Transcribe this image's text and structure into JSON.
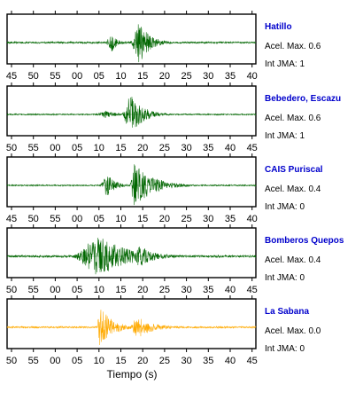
{
  "chart_data": {
    "type": "line",
    "xlabel": "Tiempo (s)",
    "panels": [
      {
        "station": "Hatillo",
        "accel_label": "Acel. Max. 0.6",
        "jma_label": "Int JMA: 1",
        "color": "#006600",
        "ticks": [
          "45",
          "50",
          "55",
          "00",
          "05",
          "10",
          "15",
          "20",
          "25",
          "30",
          "35",
          "40"
        ],
        "waveform": {
          "noise": 0.04,
          "bursts": [
            {
              "start": 0.39,
              "peak": 0.42,
              "end": 0.52,
              "amp": 0.45
            },
            {
              "start": 0.49,
              "peak": 0.53,
              "end": 0.72,
              "amp": 1.0
            }
          ]
        }
      },
      {
        "station": "Bebedero, Escazu",
        "accel_label": "Acel. Max. 0.6",
        "jma_label": "Int JMA: 1",
        "color": "#006600",
        "ticks": [
          "50",
          "55",
          "00",
          "05",
          "10",
          "15",
          "20",
          "25",
          "30",
          "35",
          "40",
          "45"
        ],
        "waveform": {
          "noise": 0.03,
          "bursts": [
            {
              "start": 0.35,
              "peak": 0.4,
              "end": 0.55,
              "amp": 0.22
            },
            {
              "start": 0.46,
              "peak": 0.49,
              "end": 0.72,
              "amp": 1.0
            }
          ]
        }
      },
      {
        "station": "CAIS Puriscal",
        "accel_label": "Acel. Max. 0.4",
        "jma_label": "Int JMA: 0",
        "color": "#006600",
        "ticks": [
          "45",
          "50",
          "55",
          "00",
          "05",
          "10",
          "15",
          "20",
          "25",
          "30",
          "35",
          "40"
        ],
        "waveform": {
          "noise": 0.03,
          "bursts": [
            {
              "start": 0.37,
              "peak": 0.4,
              "end": 0.55,
              "amp": 0.55
            },
            {
              "start": 0.49,
              "peak": 0.51,
              "end": 0.85,
              "amp": 1.0
            }
          ]
        }
      },
      {
        "station": "Bomberos Quepos",
        "accel_label": "Acel. Max. 0.4",
        "jma_label": "Int JMA: 0",
        "color": "#006600",
        "ticks": [
          "50",
          "55",
          "00",
          "05",
          "10",
          "15",
          "20",
          "25",
          "30",
          "35",
          "40",
          "45"
        ],
        "waveform": {
          "noise": 0.05,
          "bursts": [
            {
              "start": 0.25,
              "peak": 0.36,
              "end": 0.9,
              "amp": 1.0
            },
            {
              "start": 0.5,
              "peak": 0.53,
              "end": 0.8,
              "amp": 0.5
            }
          ]
        }
      },
      {
        "station": "La Sabana",
        "accel_label": "Acel. Max. 0.0",
        "jma_label": "Int JMA: 0",
        "color": "#ffaa00",
        "ticks": [
          "50",
          "55",
          "00",
          "05",
          "10",
          "15",
          "20",
          "25",
          "30",
          "35",
          "40",
          "45"
        ],
        "waveform": {
          "noise": 0.04,
          "bursts": [
            {
              "start": 0.36,
              "peak": 0.37,
              "end": 0.6,
              "amp": 1.0
            },
            {
              "start": 0.49,
              "peak": 0.52,
              "end": 0.8,
              "amp": 0.55
            }
          ]
        }
      }
    ]
  }
}
